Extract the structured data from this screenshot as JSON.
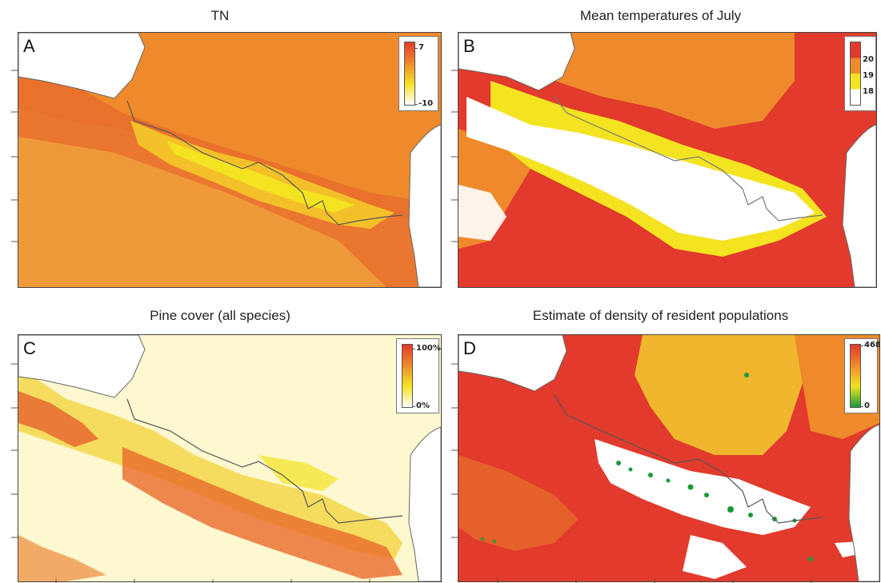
{
  "panels": {
    "a": {
      "title": "TN",
      "letter": "A",
      "legend": {
        "max": "7",
        "min": "-10"
      }
    },
    "b": {
      "title": "Mean temperatures of July",
      "letter": "B",
      "legend": {
        "v20": "20",
        "v19": "19",
        "v18": "18"
      }
    },
    "c": {
      "title": "Pine cover (all species)",
      "letter": "C",
      "legend": {
        "max": "100%",
        "min": "0%"
      }
    },
    "d": {
      "title": "Estimate of density of resident populations",
      "letter": "D",
      "legend": {
        "max": "468",
        "min": "0"
      }
    }
  },
  "colors": {
    "dark_red": "#e23a2c",
    "orange": "#ee8a2b",
    "yellow": "#f3e321",
    "pale": "#fdf8d0",
    "white": "#ffffff",
    "green": "#1a9a3a",
    "border_line": "#555555"
  }
}
